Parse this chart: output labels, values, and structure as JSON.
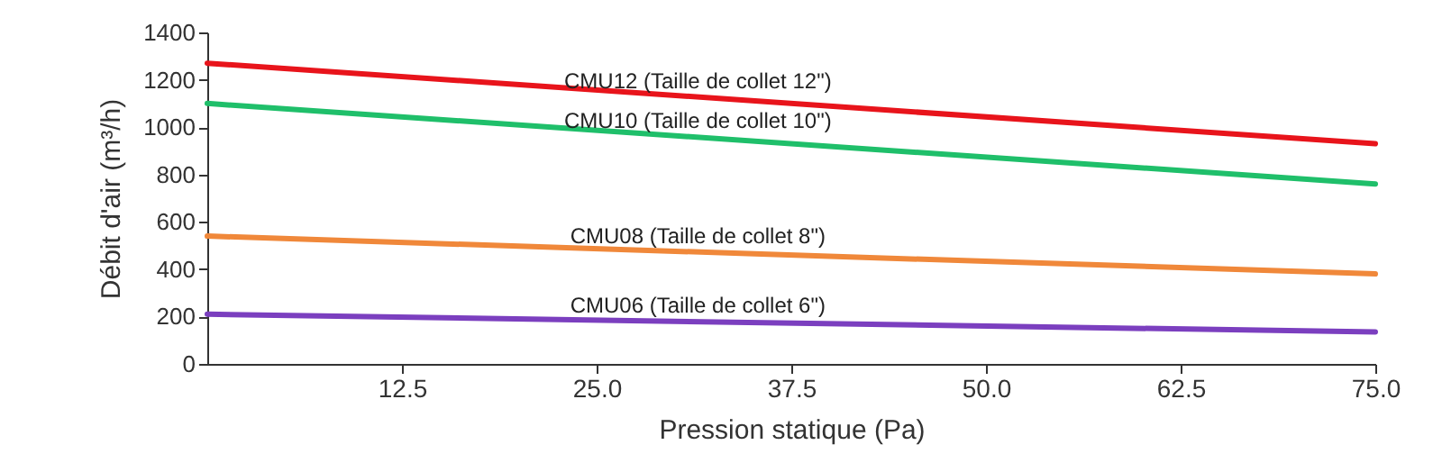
{
  "chart_data": {
    "type": "line",
    "xlabel": "Pression statique (Pa)",
    "ylabel": "Débit d'air (m³/h)",
    "x": [
      0,
      75
    ],
    "series": [
      {
        "name": "CMU12 (Taille de collet 12\")",
        "color": "#e8141b",
        "values": [
          1270,
          930
        ]
      },
      {
        "name": "CMU10 (Taille de collet 10\")",
        "color": "#1fbf6a",
        "values": [
          1100,
          760
        ]
      },
      {
        "name": "CMU08 (Taille de collet 8\")",
        "color": "#f0883a",
        "values": [
          540,
          380
        ]
      },
      {
        "name": "CMU06 (Taille de collet 6\")",
        "color": "#7b3fbf",
        "values": [
          210,
          135
        ]
      }
    ],
    "xlim": [
      0,
      75
    ],
    "xticks": [
      12.5,
      {
        "value": 25,
        "label": "25.0"
      },
      37.5,
      {
        "value": 50,
        "label": "50.0"
      },
      62.5,
      {
        "value": 75,
        "label": "75.0"
      }
    ],
    "ylim": [
      0,
      1400
    ],
    "yticks": [
      0,
      200,
      400,
      600,
      800,
      1000,
      1200,
      1400
    ],
    "grid": false,
    "marker": "none",
    "line_style": "solid"
  }
}
